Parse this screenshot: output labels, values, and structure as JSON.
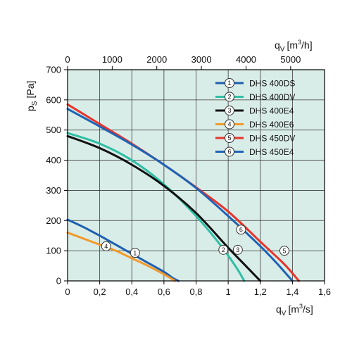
{
  "chart_data": {
    "type": "line",
    "background_color": "#d9ede8",
    "grid": true,
    "legend_position": "top-right",
    "x_axis": {
      "label_main": "q",
      "label_sub": "V",
      "label_unit_pre": "[m",
      "label_unit_sup": "3",
      "label_unit_post": "/s]",
      "range": [
        0,
        1.6
      ],
      "ticks": [
        0,
        0.2,
        0.4,
        0.6,
        0.8,
        1.0,
        1.2,
        1.4,
        1.6
      ],
      "tick_labels": [
        "0",
        "0,2",
        "0,4",
        "0,6",
        "0,8",
        "1",
        "1,2",
        "1,4",
        "1,6"
      ]
    },
    "x2_axis": {
      "label_main": "q",
      "label_sub": "V",
      "label_unit_pre": "[m",
      "label_unit_sup": "3",
      "label_unit_post": "/h]",
      "ticks": [
        0,
        1000,
        2000,
        3000,
        4000,
        5000
      ],
      "tick_labels": [
        "0",
        "1000",
        "2000",
        "3000",
        "4000",
        "5000"
      ]
    },
    "y_axis": {
      "label_main": "p",
      "label_sub": "S",
      "label_unit": "[Pa]",
      "range": [
        0,
        700
      ],
      "ticks": [
        0,
        100,
        200,
        300,
        400,
        500,
        600,
        700
      ],
      "tick_labels": [
        "0",
        "100",
        "200",
        "300",
        "400",
        "500",
        "600",
        "700"
      ]
    },
    "series": [
      {
        "name": "DHS 400DS",
        "marker": "1",
        "color": "#1f5fb0",
        "x": [
          0,
          0.1,
          0.2,
          0.3,
          0.4,
          0.5,
          0.6,
          0.66,
          0.69
        ],
        "y": [
          203,
          178,
          150,
          120,
          90,
          60,
          30,
          8,
          0
        ],
        "marker_at": [
          0.42,
          93
        ]
      },
      {
        "name": "DHS 400DV",
        "marker": "2",
        "color": "#2fbfa5",
        "x": [
          0,
          0.2,
          0.4,
          0.6,
          0.8,
          0.95,
          1.05,
          1.1
        ],
        "y": [
          490,
          455,
          400,
          320,
          215,
          120,
          45,
          0
        ],
        "marker_at": [
          0.97,
          103
        ]
      },
      {
        "name": "DHS 400E4",
        "marker": "3",
        "color": "#111111",
        "x": [
          0,
          0.2,
          0.4,
          0.6,
          0.8,
          1.0,
          1.1,
          1.2
        ],
        "y": [
          480,
          440,
          385,
          315,
          225,
          110,
          55,
          0
        ],
        "marker_at": [
          1.06,
          103
        ]
      },
      {
        "name": "DHS 400E6",
        "marker": "4",
        "color": "#f2992a",
        "x": [
          0,
          0.1,
          0.2,
          0.3,
          0.4,
          0.5,
          0.6,
          0.67
        ],
        "y": [
          160,
          140,
          120,
          100,
          75,
          50,
          22,
          0
        ],
        "marker_at": [
          0.24,
          115
        ]
      },
      {
        "name": "DHS 450DV",
        "marker": "5",
        "color": "#e8342c",
        "x": [
          0,
          0.2,
          0.4,
          0.6,
          0.8,
          1.0,
          1.2,
          1.35,
          1.44
        ],
        "y": [
          585,
          520,
          455,
          385,
          310,
          230,
          130,
          55,
          0
        ],
        "marker_at": [
          1.35,
          100
        ]
      },
      {
        "name": "DHS 450E4",
        "marker": "6",
        "color": "#1f63b5",
        "x": [
          0,
          0.2,
          0.4,
          0.6,
          0.8,
          1.0,
          1.2,
          1.3,
          1.4
        ],
        "y": [
          570,
          512,
          452,
          385,
          308,
          215,
          115,
          60,
          0
        ],
        "marker_at": [
          1.08,
          170
        ]
      }
    ]
  }
}
